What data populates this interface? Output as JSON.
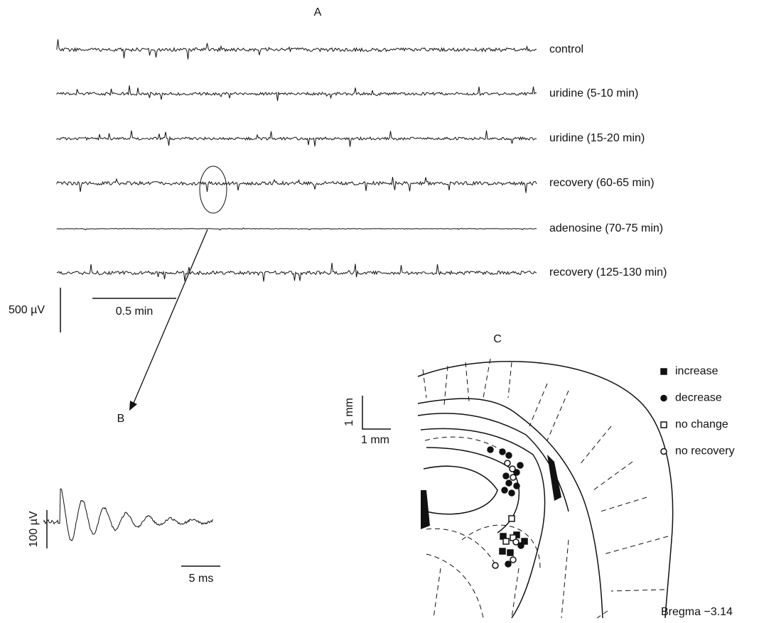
{
  "panel_a": {
    "label": "A",
    "traces": [
      "control",
      "uridine (5-10 min)",
      "uridine (15-20 min)",
      "recovery (60-65 min)",
      "adenosine (70-75 min)",
      "recovery (125-130 min)"
    ],
    "scale_voltage": "500 µV",
    "scale_time": "0.5 min"
  },
  "panel_b": {
    "label": "B",
    "scale_voltage": "100 µV",
    "scale_time": "5 ms"
  },
  "panel_c": {
    "label": "C",
    "scale_vertical": "1 mm",
    "scale_horizontal": "1 mm",
    "legend": [
      "increase",
      "decrease",
      "no change",
      "no recovery"
    ],
    "caption": "Bregma −3.14"
  }
}
